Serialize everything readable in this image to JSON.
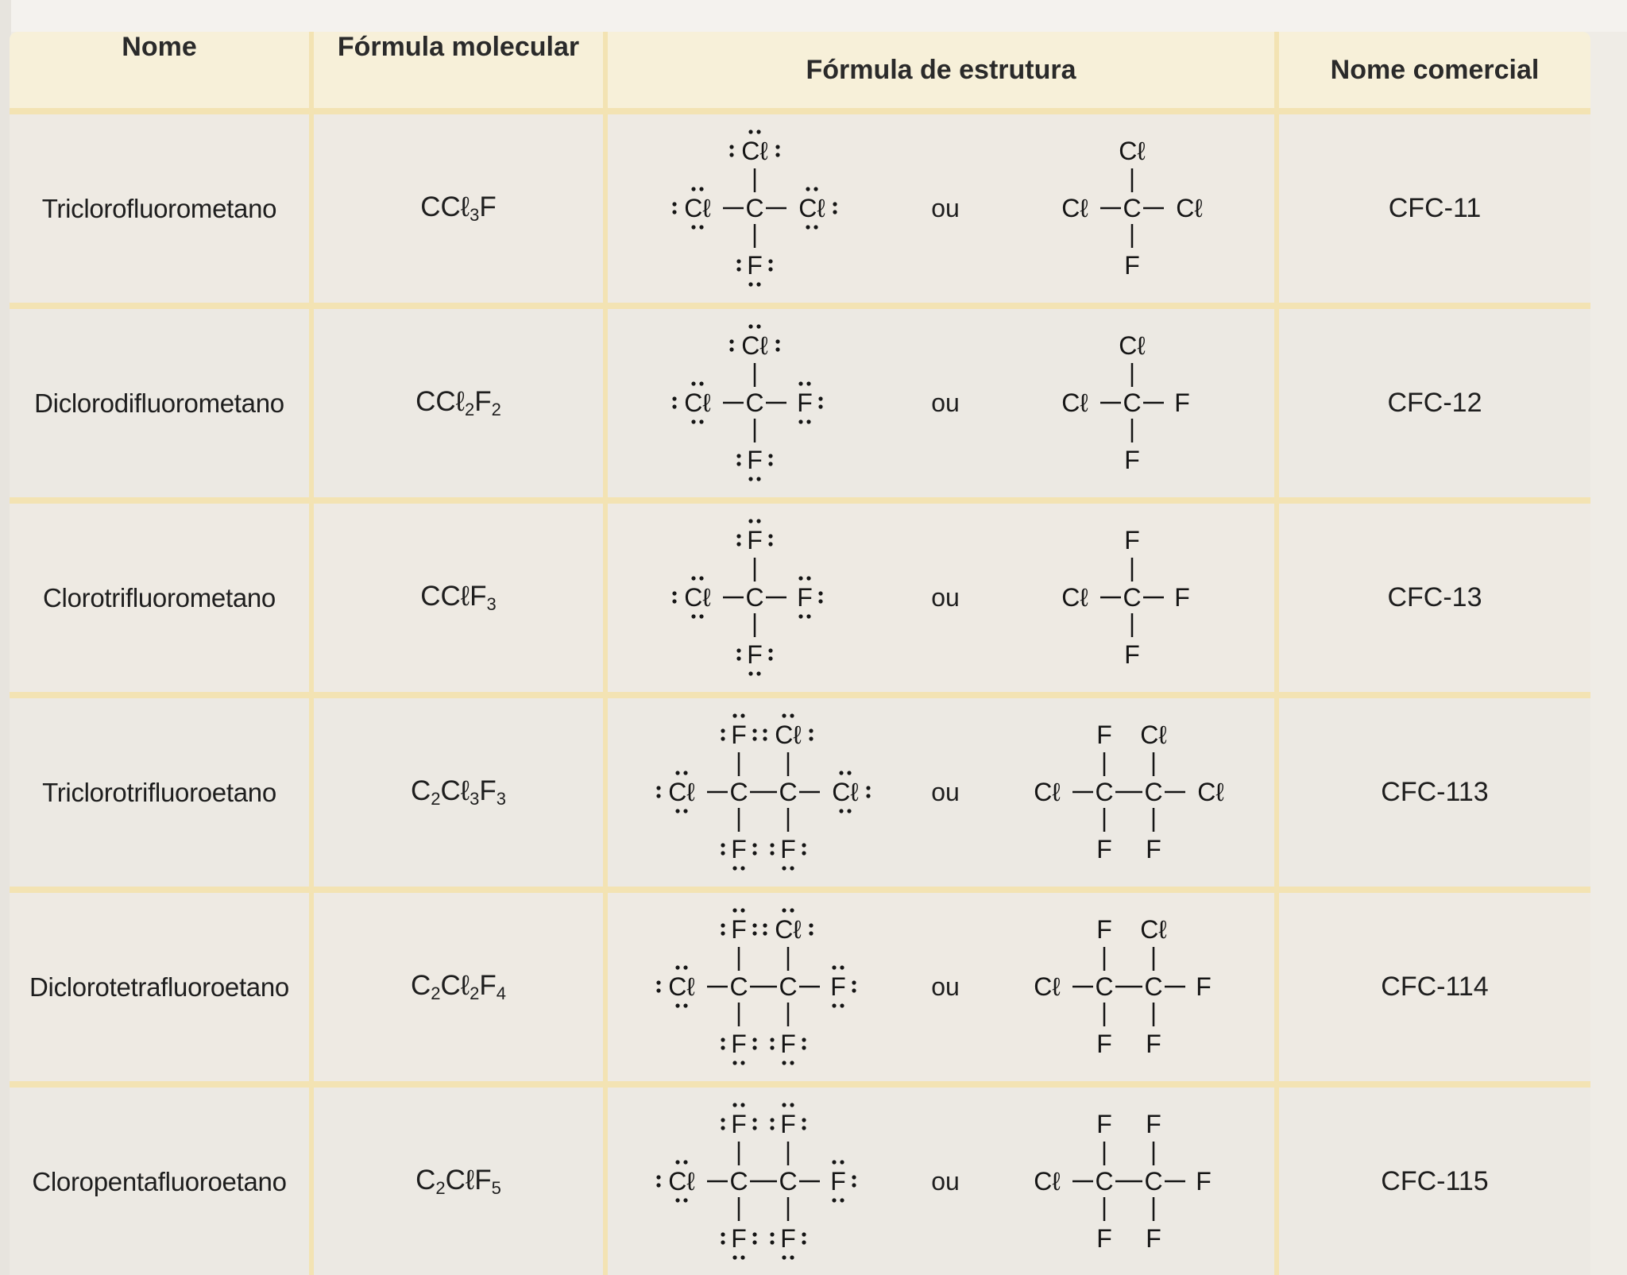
{
  "headers": {
    "name": "Nome",
    "molecular": "Fórmula molecular",
    "structure": "Fórmula de estrutura",
    "commercial": "Nome comercial"
  },
  "ou": "ou",
  "rows": [
    {
      "name": "Triclorofluorometano",
      "formula": [
        [
          "C",
          ""
        ],
        [
          "Cℓ",
          "3"
        ],
        [
          "F",
          ""
        ]
      ],
      "commercial": "CFC-11",
      "structure": {
        "carbons": 1,
        "top": [
          "Cℓ"
        ],
        "bottom": [
          "F"
        ],
        "left": "Cℓ",
        "right": "Cℓ"
      }
    },
    {
      "name": "Diclorodifluorometano",
      "formula": [
        [
          "C",
          ""
        ],
        [
          "Cℓ",
          "2"
        ],
        [
          "F",
          "2"
        ]
      ],
      "commercial": "CFC-12",
      "structure": {
        "carbons": 1,
        "top": [
          "Cℓ"
        ],
        "bottom": [
          "F"
        ],
        "left": "Cℓ",
        "right": "F"
      }
    },
    {
      "name": "Clorotrifluorometano",
      "formula": [
        [
          "C",
          ""
        ],
        [
          "Cℓ",
          ""
        ],
        [
          "F",
          "3"
        ]
      ],
      "commercial": "CFC-13",
      "structure": {
        "carbons": 1,
        "top": [
          "F"
        ],
        "bottom": [
          "F"
        ],
        "left": "Cℓ",
        "right": "F"
      }
    },
    {
      "name": "Triclorotrifluoroetano",
      "formula": [
        [
          "C",
          "2"
        ],
        [
          "Cℓ",
          "3"
        ],
        [
          "F",
          "3"
        ]
      ],
      "commercial": "CFC-113",
      "structure": {
        "carbons": 2,
        "top": [
          "F",
          "Cℓ"
        ],
        "bottom": [
          "F",
          "F"
        ],
        "left": "Cℓ",
        "right": "Cℓ"
      }
    },
    {
      "name": "Diclorotetrafluoroetano",
      "formula": [
        [
          "C",
          "2"
        ],
        [
          "Cℓ",
          "2"
        ],
        [
          "F",
          "4"
        ]
      ],
      "commercial": "CFC-114",
      "structure": {
        "carbons": 2,
        "top": [
          "F",
          "Cℓ"
        ],
        "bottom": [
          "F",
          "F"
        ],
        "left": "Cℓ",
        "right": "F"
      }
    },
    {
      "name": "Cloropentafluoroetano",
      "formula": [
        [
          "C",
          "2"
        ],
        [
          "Cℓ",
          ""
        ],
        [
          "F",
          "5"
        ]
      ],
      "commercial": "CFC-115",
      "structure": {
        "carbons": 2,
        "top": [
          "F",
          "F"
        ],
        "bottom": [
          "F",
          "F"
        ],
        "left": "Cℓ",
        "right": "F"
      }
    }
  ]
}
